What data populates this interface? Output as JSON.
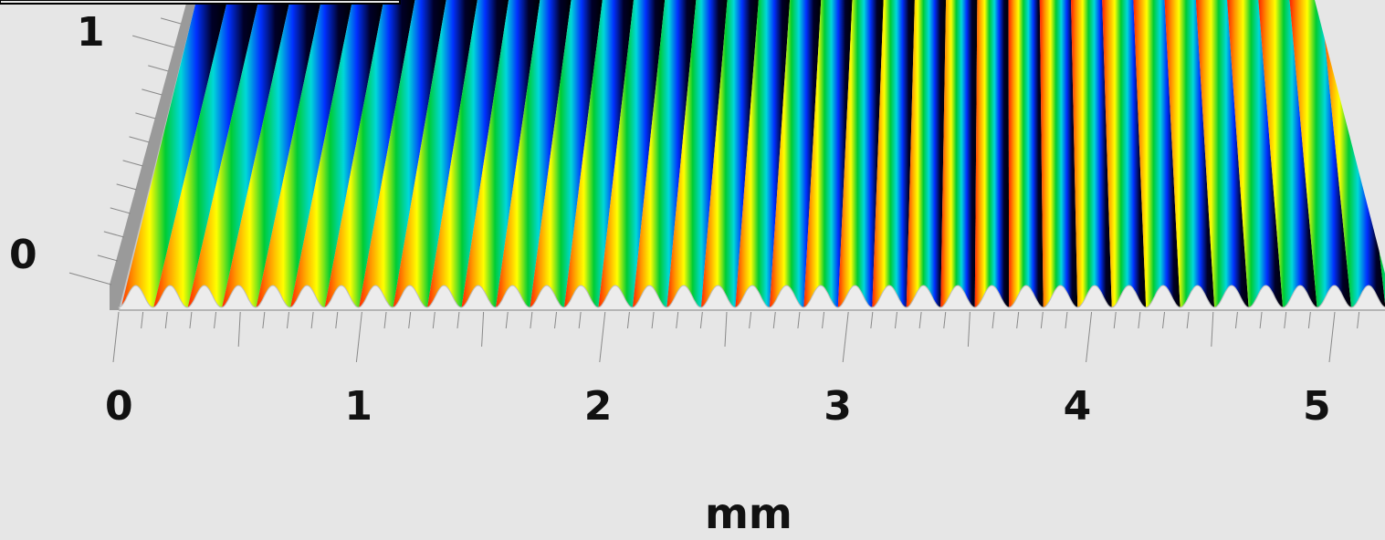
{
  "chart_data": {
    "type": "surface",
    "x_axis": {
      "label": "mm",
      "ticks": [
        "0",
        "1",
        "2",
        "3",
        "4",
        "5"
      ],
      "range": [
        0,
        5.2
      ]
    },
    "z_axis": {
      "ticks": [
        "0",
        "1"
      ],
      "range": [
        0,
        1
      ]
    },
    "surface": {
      "pattern": "sinusoidal grating",
      "period_mm": 0.1408,
      "amplitude": 1,
      "colormap": [
        "#ff2000",
        "#ff9900",
        "#ffff00",
        "#00cc33",
        "#00d8d8",
        "#0030ff",
        "#000028",
        "#000000"
      ]
    },
    "grid": false
  }
}
